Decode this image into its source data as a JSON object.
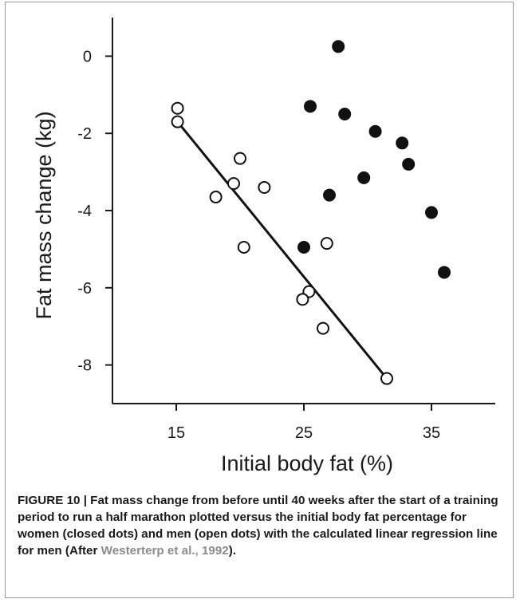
{
  "chart_data": {
    "type": "scatter",
    "xlabel": "Initial body fat (%)",
    "ylabel": "Fat mass change (kg)",
    "xlim": [
      10,
      40
    ],
    "ylim": [
      -9,
      1
    ],
    "xticks": [
      15,
      25,
      35
    ],
    "yticks": [
      0,
      -2,
      -4,
      -6,
      -8
    ],
    "grid": false,
    "legend": "none",
    "series": [
      {
        "marker": "closed",
        "color": "#111111",
        "x": [
          27.7,
          25.5,
          28.2,
          30.6,
          32.7,
          33.2,
          29.7,
          27.0,
          25.0,
          35.0,
          36.0
        ],
        "y": [
          0.25,
          -1.3,
          -1.5,
          -1.95,
          -2.25,
          -2.8,
          -3.15,
          -3.6,
          -4.95,
          -4.05,
          -5.6
        ]
      },
      {
        "marker": "open",
        "color": "#111111",
        "x": [
          15.1,
          15.1,
          20.0,
          19.5,
          18.1,
          21.9,
          20.3,
          26.8,
          25.4,
          24.9,
          26.5,
          31.5
        ],
        "y": [
          -1.35,
          -1.7,
          -2.65,
          -3.3,
          -3.65,
          -3.4,
          -4.95,
          -4.85,
          -6.1,
          -6.3,
          -7.05,
          -8.35
        ]
      }
    ],
    "regression_line": {
      "x": [
        15.1,
        31.5
      ],
      "y": [
        -1.7,
        -8.35
      ]
    }
  },
  "caption": {
    "main": "FIGURE 10 | Fat mass change from before until 40 weeks after the start of a training period to run a half marathon plotted versus the initial body fat percentage for women (closed dots) and men (open dots) with the calculated linear regression line for men (After ",
    "link": "Westerterp et al., 1992",
    "end": ")."
  }
}
